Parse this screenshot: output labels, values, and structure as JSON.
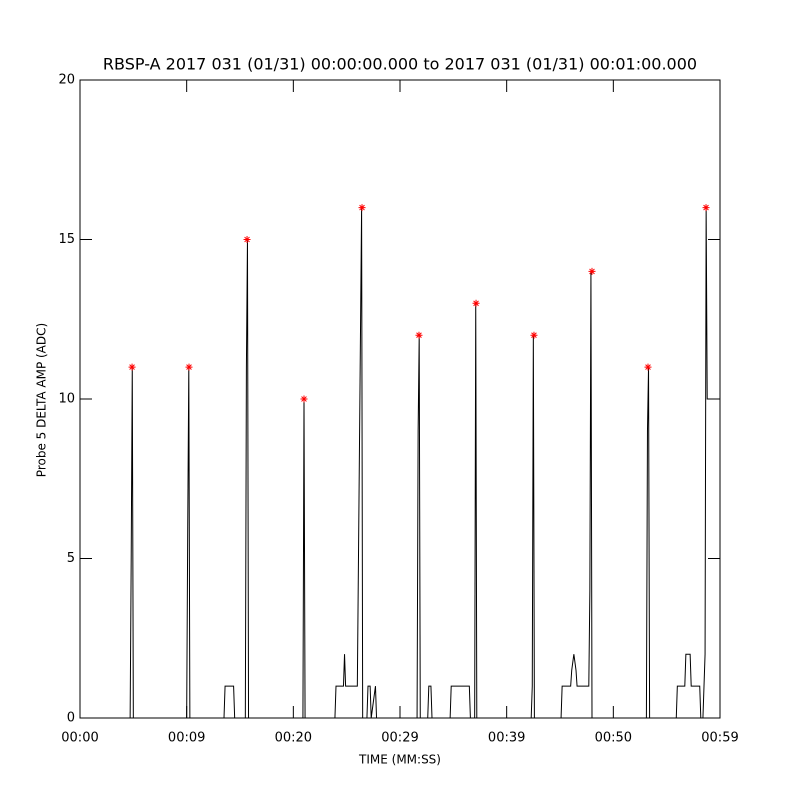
{
  "chart_data": {
    "type": "line",
    "title": "RBSP-A 2017 031 (01/31) 00:00:00.000 to 2017 031 (01/31) 00:01:00.000",
    "x_label": "TIME (MM:SS)",
    "y_label": "Probe 5 DELTA AMP (ADC)",
    "xlim": [
      0,
      60
    ],
    "xticks": [
      {
        "value": 0,
        "label": "00:00"
      },
      {
        "value": 10,
        "label": "00:09"
      },
      {
        "value": 20,
        "label": "00:20"
      },
      {
        "value": 30,
        "label": "00:29"
      },
      {
        "value": 40,
        "label": "00:39"
      },
      {
        "value": 50,
        "label": "00:50"
      },
      {
        "value": 60,
        "label": "00:59"
      }
    ],
    "ylim": [
      0,
      20
    ],
    "yticks": [
      0,
      5,
      10,
      15,
      20
    ],
    "series": [
      {
        "color": "#000000",
        "marker": "none",
        "x": [
          0,
          4.7,
          4.8,
          4.9,
          5.0,
          10.0,
          10.1,
          10.2,
          10.3,
          13.5,
          13.6,
          14.4,
          14.5,
          15.5,
          15.6,
          15.7,
          15.8,
          20.9,
          21.0,
          21.1,
          23.9,
          24.0,
          24.7,
          24.8,
          24.9,
          25.9,
          26.0,
          26.4,
          26.5,
          26.9,
          27.0,
          27.2,
          27.3,
          27.7,
          27.8,
          31.6,
          31.7,
          31.8,
          31.9,
          32.6,
          32.7,
          32.9,
          33.0,
          34.7,
          34.8,
          36.5,
          36.6,
          37.0,
          37.1,
          37.2,
          42.3,
          42.4,
          42.5,
          42.6,
          45.1,
          45.2,
          46.0,
          46.1,
          46.3,
          46.5,
          46.6,
          47.7,
          47.8,
          47.9,
          48.0,
          48.1,
          53.1,
          53.2,
          53.3,
          53.4,
          55.9,
          56.0,
          56.7,
          56.8,
          57.2,
          57.3,
          58.1,
          58.2,
          58.4,
          58.6,
          58.7,
          58.8,
          60
        ],
        "values": [
          0,
          0,
          5,
          11,
          0,
          0,
          6,
          11,
          0,
          0,
          1,
          1,
          0,
          0,
          11,
          15,
          0,
          0,
          10,
          0,
          0,
          1,
          1,
          2,
          1,
          1,
          1,
          16,
          0,
          0,
          1,
          1,
          0,
          1,
          0,
          0,
          9,
          12,
          0,
          0,
          1,
          1,
          0,
          0,
          1,
          1,
          0,
          0,
          13,
          0,
          0,
          1,
          12,
          0,
          0,
          1,
          1,
          1.5,
          2,
          1.5,
          1,
          1,
          4,
          14,
          0,
          0,
          0,
          9,
          11,
          0,
          0,
          1,
          1,
          2,
          2,
          1,
          1,
          0,
          0,
          2,
          16,
          10,
          10
        ]
      },
      {
        "color": "#ff0000",
        "marker": "asterisk",
        "x": [
          4.88,
          10.22,
          15.66,
          21.0,
          26.44,
          31.78,
          37.13,
          42.56,
          48.0,
          53.25,
          58.69
        ],
        "values": [
          11,
          11,
          15,
          10,
          16,
          12,
          13,
          12,
          14,
          11,
          16
        ]
      }
    ]
  }
}
